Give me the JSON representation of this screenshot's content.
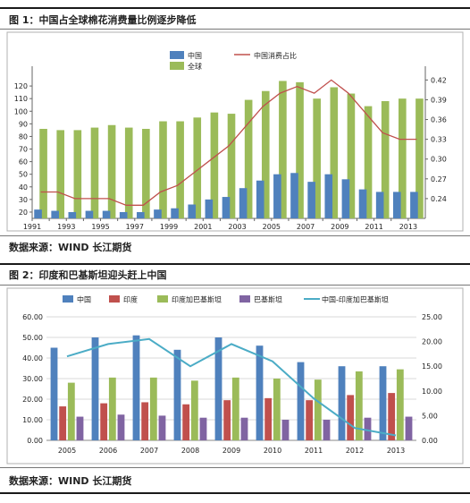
{
  "figure1": {
    "title": "图 1：中国占全球棉花消费量比例逐步降低",
    "source": "数据来源：WIND  长江期货"
  },
  "figure2": {
    "title": "图 2：印度和巴基斯坦迎头赶上中国",
    "source": "数据来源：WIND  长江期货"
  },
  "chart_data": [
    {
      "type": "bar",
      "categories": [
        "1991",
        "1992",
        "1993",
        "1994",
        "1995",
        "1996",
        "1997",
        "1998",
        "1999",
        "2000",
        "2001",
        "2002",
        "2003",
        "2004",
        "2005",
        "2006",
        "2007",
        "2008",
        "2009",
        "2010",
        "2011",
        "2012",
        "2013"
      ],
      "x_tick_labels": [
        "1991",
        "1993",
        "1995",
        "1997",
        "1999",
        "2001",
        "2003",
        "2005",
        "2007",
        "2009",
        "2011",
        "2013"
      ],
      "series": [
        {
          "name": "中国",
          "kind": "bar",
          "axis": "left",
          "color": "#4f81bd",
          "values": [
            22,
            21,
            20,
            21,
            21,
            20,
            20,
            22,
            23,
            26,
            30,
            32,
            39,
            45,
            50,
            51,
            44,
            50,
            46,
            38,
            36,
            36,
            36
          ]
        },
        {
          "name": "全球",
          "kind": "bar",
          "axis": "left",
          "color": "#9bbb59",
          "values": [
            86,
            85,
            85,
            87,
            89,
            87,
            86,
            92,
            92,
            95,
            99,
            98,
            109,
            116,
            124,
            123,
            110,
            119,
            114,
            104,
            108,
            110,
            110
          ]
        },
        {
          "name": "中国消费占比",
          "kind": "line",
          "axis": "right",
          "color": "#c0504d",
          "values": [
            0.25,
            0.25,
            0.24,
            0.24,
            0.24,
            0.23,
            0.23,
            0.25,
            0.26,
            0.28,
            0.3,
            0.32,
            0.35,
            0.38,
            0.4,
            0.41,
            0.4,
            0.42,
            0.4,
            0.37,
            0.34,
            0.33,
            0.33
          ]
        }
      ],
      "y_left": {
        "min": 15,
        "max": 130,
        "ticks": [
          20,
          30,
          40,
          50,
          60,
          70,
          80,
          90,
          100,
          110,
          120
        ]
      },
      "y_right": {
        "min": 0.21,
        "max": 0.43,
        "ticks": [
          "0.24",
          "0.27",
          "0.30",
          "0.33",
          "0.36",
          "0.39",
          "0.42"
        ]
      },
      "legend_position": "top",
      "grid": false
    },
    {
      "type": "bar",
      "categories": [
        "2005",
        "2006",
        "2007",
        "2008",
        "2009",
        "2010",
        "2011",
        "2012",
        "2013"
      ],
      "series": [
        {
          "name": "中国",
          "kind": "bar",
          "axis": "left",
          "color": "#4f81bd",
          "values": [
            45.0,
            50.0,
            51.0,
            44.0,
            50.0,
            46.0,
            38.0,
            36.0,
            36.0
          ]
        },
        {
          "name": "印度",
          "kind": "bar",
          "axis": "left",
          "color": "#c0504d",
          "values": [
            16.5,
            18.0,
            18.5,
            17.5,
            19.5,
            20.5,
            19.5,
            22.0,
            23.0
          ]
        },
        {
          "name": "印度加巴基斯坦",
          "kind": "bar",
          "axis": "left",
          "color": "#9bbb59",
          "values": [
            28.0,
            30.5,
            30.5,
            29.0,
            30.5,
            30.0,
            29.5,
            33.5,
            34.5
          ]
        },
        {
          "name": "巴基斯坦",
          "kind": "bar",
          "axis": "left",
          "color": "#8064a2",
          "values": [
            11.5,
            12.5,
            12.0,
            11.0,
            11.0,
            10.0,
            10.0,
            11.0,
            11.5
          ]
        },
        {
          "name": "中国-印度加巴基斯坦",
          "kind": "line",
          "axis": "right",
          "color": "#4bacc6",
          "values": [
            17.0,
            19.5,
            20.5,
            15.0,
            19.5,
            16.0,
            8.5,
            2.5,
            1.0
          ]
        }
      ],
      "y_left": {
        "min": 0,
        "max": 60,
        "ticks": [
          "0.00",
          "10.00",
          "20.00",
          "30.00",
          "40.00",
          "50.00",
          "60.00"
        ]
      },
      "y_right": {
        "min": 0,
        "max": 25,
        "ticks": [
          "0.00",
          "5.00",
          "10.00",
          "15.00",
          "20.00",
          "25.00"
        ]
      },
      "legend_position": "top",
      "grid": true
    }
  ]
}
